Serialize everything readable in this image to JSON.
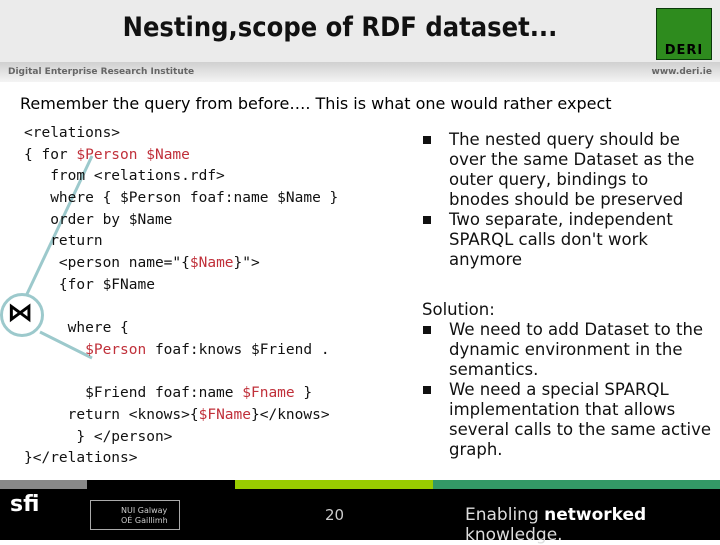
{
  "header": {
    "title": "Nesting,scope of RDF dataset...",
    "logo": "DERI",
    "institute": "Digital Enterprise Research Institute",
    "url": "www.deri.ie"
  },
  "lead": "Remember the query from before…. This is what one would rather expect",
  "code": [
    [
      {
        "t": "<relations>"
      }
    ],
    [
      {
        "t": "{ for "
      },
      {
        "t": "$Person $Name",
        "v": 1
      }
    ],
    [
      {
        "t": "   from <relations.rdf>"
      }
    ],
    [
      {
        "t": "   where { $Person foaf:name $Name }"
      }
    ],
    [
      {
        "t": "   order by $Name"
      }
    ],
    [
      {
        "t": "   return"
      }
    ],
    [
      {
        "t": "    <person name=\"{"
      },
      {
        "t": "$Name",
        "v": 1
      },
      {
        "t": "}\">"
      }
    ],
    [
      {
        "t": "    {for $FName"
      }
    ],
    [
      {
        "t": ""
      }
    ],
    [
      {
        "t": "     where {"
      }
    ],
    [
      {
        "t": "       "
      },
      {
        "t": "$Person",
        "v": 1
      },
      {
        "t": " foaf:knows $Friend ."
      }
    ],
    [
      {
        "t": ""
      }
    ],
    [
      {
        "t": "       $Friend foaf:name "
      },
      {
        "t": "$Fname",
        "v": 1
      },
      {
        "t": " }"
      }
    ],
    [
      {
        "t": "     return <knows>{"
      },
      {
        "t": "$FName",
        "v": 1
      },
      {
        "t": "}</knows>"
      }
    ],
    [
      {
        "t": "      } </person>"
      }
    ],
    [
      {
        "t": "}</relations>"
      }
    ]
  ],
  "join_symbol": "⋈",
  "bullets1": [
    "The nested query should be over the same Dataset as the outer query, bindings to bnodes should be preserved",
    "Two separate, independent SPARQL calls don't work anymore"
  ],
  "solution_label": "Solution:",
  "bullets2": [
    "We need to add Dataset to the dynamic environment in the semantics.",
    "We need a special SPARQL implementation that allows several calls to the same active graph."
  ],
  "footer": {
    "page": "20",
    "tagline_pre": "Enabling ",
    "tagline_bold": "networked",
    "tagline_post": " knowledge.",
    "sfi": "sfi",
    "nui": "NUI Galway OÉ Gaillimh"
  },
  "colors": {
    "variable": "#c0303a",
    "bar_gray": "#888888",
    "bar_lime": "#99cc00",
    "bar_green": "#339966"
  }
}
